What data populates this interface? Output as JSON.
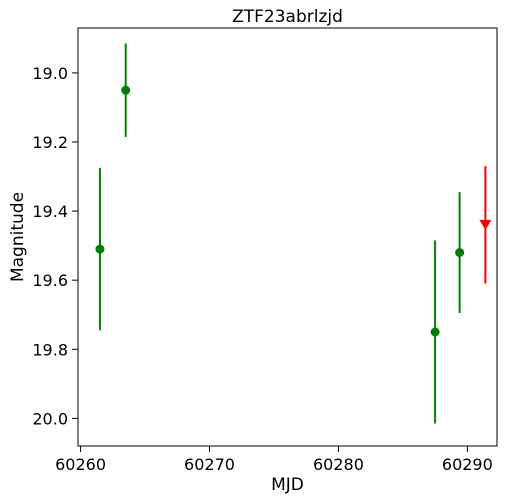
{
  "chart_data": {
    "type": "scatter",
    "title": "ZTF23abrlzjd",
    "xlabel": "MJD",
    "ylabel": "Magnitude",
    "xlim": [
      60259.8,
      60292.3
    ],
    "ylim": [
      20.08,
      18.87
    ],
    "y_inverted": true,
    "x_ticks": [
      "60260",
      "60270",
      "60280",
      "60290"
    ],
    "y_ticks": [
      "19.0",
      "19.2",
      "19.4",
      "19.6",
      "19.8",
      "20.0"
    ],
    "grid": false,
    "series": [
      {
        "color": "#008000",
        "marker": "circle",
        "points": [
          {
            "x": 60261.5,
            "y": 19.51,
            "err": 0.235
          },
          {
            "x": 60263.5,
            "y": 19.05,
            "err": 0.135
          },
          {
            "x": 60287.5,
            "y": 19.75,
            "err": 0.265
          },
          {
            "x": 60289.4,
            "y": 19.52,
            "err": 0.175
          }
        ]
      },
      {
        "color": "#ff0000",
        "marker": "down-triangle",
        "points": [
          {
            "x": 60291.4,
            "y": 19.44,
            "err": 0.17
          }
        ]
      }
    ]
  }
}
